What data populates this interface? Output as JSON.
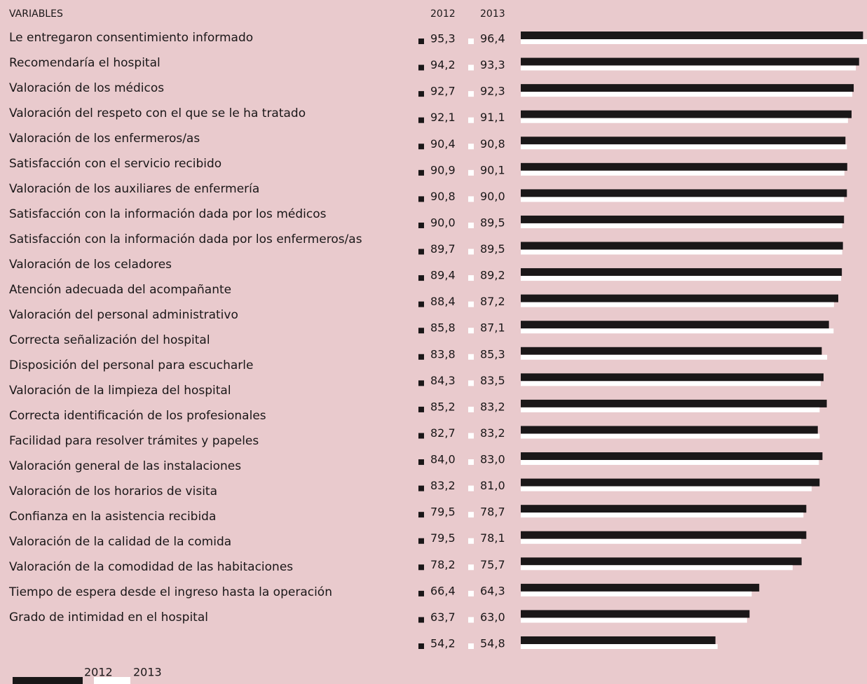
{
  "chart_data": {
    "type": "bar",
    "orientation": "horizontal",
    "category_header": "VARIABLES",
    "categories": [
      "Le entregaron consentimiento informado",
      "Recomendaría el hospital",
      "Valoración de los médicos",
      "Valoración del respeto con el que se le ha tratado",
      "Valoración de los enfermeros/as",
      "Satisfacción con el servicio recibido",
      "Valoración de los auxiliares de enfermería",
      "Satisfacción con la información dada por los médicos",
      "Satisfacción con la información dada por los enfermeros/as",
      "Valoración de los celadores",
      "Atención adecuada del acompañante",
      "Valoración del personal administrativo",
      "Correcta señalización del hospital",
      "Disposición del personal para escucharle",
      "Valoración de la limpieza del hospital",
      "Correcta identificación de los profesionales",
      "Facilidad para resolver trámites y papeles",
      "Valoración general de las instalaciones",
      "Valoración de los horarios de visita",
      "Confianza en la asistencia recibida",
      "Valoración de la calidad de la comida",
      "Valoración de la comodidad de las habitaciones",
      "Tiempo de espera desde el ingreso hasta la operación",
      "Grado de intimidad en el hospital"
    ],
    "series": [
      {
        "name": "2012",
        "color": "#1a1718",
        "values": [
          95.3,
          94.2,
          92.7,
          92.1,
          90.4,
          90.9,
          90.8,
          90.0,
          89.7,
          89.4,
          88.4,
          85.8,
          83.8,
          84.3,
          85.2,
          82.7,
          84.0,
          83.2,
          79.5,
          79.5,
          78.2,
          66.4,
          63.7,
          54.2
        ],
        "value_labels": [
          "95,3",
          "94,2",
          "92,7",
          "92,1",
          "90,4",
          "90,9",
          "90,8",
          "90,0",
          "89,7",
          "89,4",
          "88,4",
          "85,8",
          "83,8",
          "84,3",
          "85,2",
          "82,7",
          "84,0",
          "83,2",
          "79,5",
          "79,5",
          "78,2",
          "66,4",
          "63,7",
          "54,2"
        ]
      },
      {
        "name": "2013",
        "color": "#ffffff",
        "values": [
          96.4,
          93.3,
          92.3,
          91.1,
          90.8,
          90.1,
          90.0,
          89.5,
          89.5,
          89.2,
          87.2,
          87.1,
          85.3,
          83.5,
          83.2,
          83.2,
          83.0,
          81.0,
          78.7,
          78.1,
          75.7,
          64.3,
          63.0,
          54.8
        ],
        "value_labels": [
          "96,4",
          "93,3",
          "92,3",
          "91,1",
          "90,8",
          "90,1",
          "90,0",
          "89,5",
          "89,5",
          "89,2",
          "87,2",
          "87,1",
          "85,3",
          "83,5",
          "83,2",
          "83,2",
          "83,0",
          "81,0",
          "78,7",
          "78,1",
          "75,7",
          "64,3",
          "63,0",
          "54,8"
        ]
      }
    ],
    "legend": "bottom-left"
  }
}
